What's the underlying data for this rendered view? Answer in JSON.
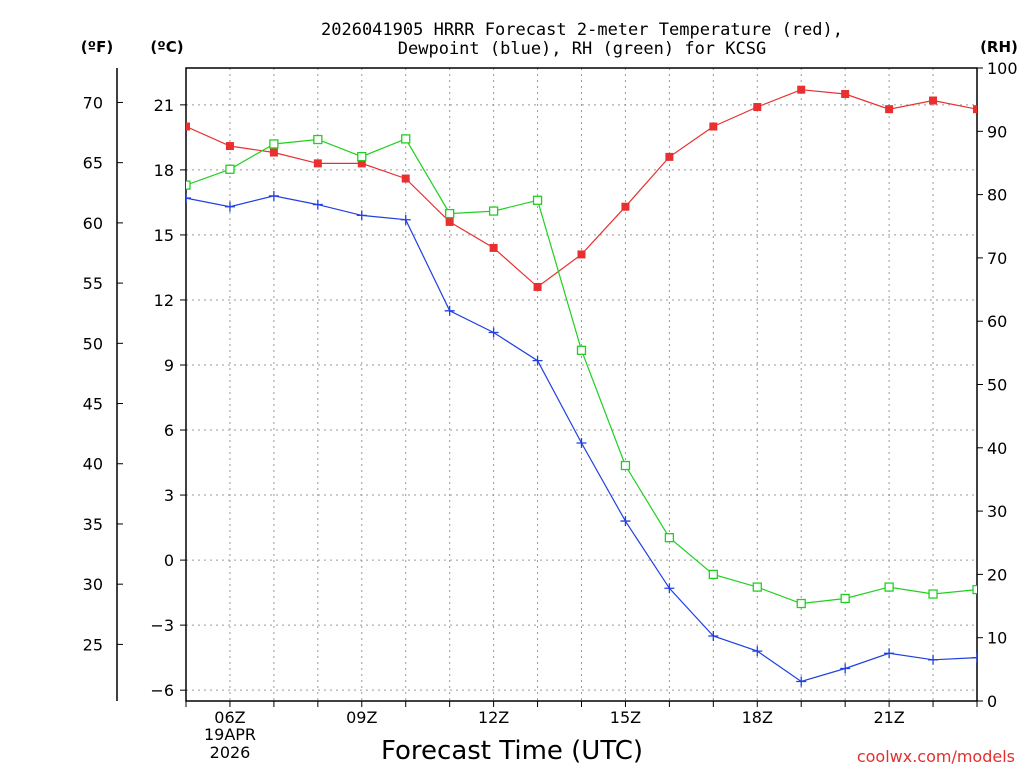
{
  "header": {
    "title_line1": "2026041905 HRRR Forecast 2-meter Temperature (red),",
    "title_line2": "Dewpoint (blue), RH (green) for KCSG"
  },
  "axes": {
    "left_f_unit": "(ºF)",
    "left_c_unit": "(ºC)",
    "right_unit": "(RH)",
    "xlabel": "Forecast Time (UTC)",
    "date_line1": "19APR",
    "date_line2": "2026"
  },
  "footer": {
    "credit": "coolwx.com/models"
  },
  "chart_data": {
    "type": "line",
    "title": "2026041905 HRRR Forecast 2-meter Temperature (red), Dewpoint (blue), RH (green) for KCSG",
    "xlabel": "Forecast Time (UTC)",
    "x_hours": [
      5,
      6,
      7,
      8,
      9,
      10,
      11,
      12,
      13,
      14,
      15,
      16,
      17,
      18,
      19,
      20,
      21,
      22,
      23
    ],
    "xlim": [
      5,
      23
    ],
    "x_ticks": [
      {
        "hour": 6,
        "label": "06Z"
      },
      {
        "hour": 9,
        "label": "09Z"
      },
      {
        "hour": 12,
        "label": "12Z"
      },
      {
        "hour": 15,
        "label": "15Z"
      },
      {
        "hour": 18,
        "label": "18Z"
      },
      {
        "hour": 21,
        "label": "21Z"
      }
    ],
    "celsius_axis": {
      "ylim": [
        -6.5,
        22.7
      ],
      "ticks": [
        21,
        18,
        15,
        12,
        9,
        6,
        3,
        0,
        -3,
        -6
      ],
      "tick_labels": [
        "21",
        "18",
        "15",
        "12",
        "9",
        "6",
        "3",
        "0",
        "−3",
        "−6"
      ]
    },
    "fahrenheit_axis": {
      "ticks": [
        70,
        65,
        60,
        55,
        50,
        45,
        40,
        35,
        30,
        25
      ],
      "tick_labels": [
        "70",
        "65",
        "60",
        "55",
        "50",
        "45",
        "40",
        "35",
        "30",
        "25"
      ]
    },
    "rh_axis": {
      "ylim": [
        0,
        100
      ],
      "ticks": [
        100,
        90,
        80,
        70,
        60,
        50,
        40,
        30,
        20,
        10,
        0
      ],
      "tick_labels": [
        "100",
        "90",
        "80",
        "70",
        "60",
        "50",
        "40",
        "30",
        "20",
        "10",
        "0"
      ]
    },
    "series": [
      {
        "name": "Temperature",
        "unit": "C",
        "color": "#e83030",
        "marker": "filled-square",
        "values": [
          20.0,
          19.1,
          18.8,
          18.3,
          18.3,
          17.6,
          15.6,
          14.4,
          12.6,
          14.1,
          16.3,
          18.6,
          20.0,
          20.9,
          21.7,
          21.5,
          20.8,
          21.2,
          20.8
        ]
      },
      {
        "name": "Dewpoint",
        "unit": "C",
        "color": "#2040e0",
        "marker": "plus",
        "values": [
          16.7,
          16.3,
          16.8,
          16.4,
          15.9,
          15.7,
          11.5,
          10.5,
          9.2,
          5.4,
          1.8,
          -1.3,
          -3.5,
          -4.2,
          -5.6,
          -5.0,
          -4.3,
          -4.6,
          -4.5
        ]
      },
      {
        "name": "RH",
        "unit": "%",
        "color": "#20d020",
        "marker": "open-square",
        "values": [
          81.5,
          84.0,
          88.0,
          88.7,
          86.0,
          88.8,
          77.0,
          77.4,
          79.1,
          55.4,
          37.2,
          25.8,
          20.0,
          18.0,
          15.4,
          16.2,
          18.0,
          16.9,
          17.6
        ]
      }
    ]
  }
}
